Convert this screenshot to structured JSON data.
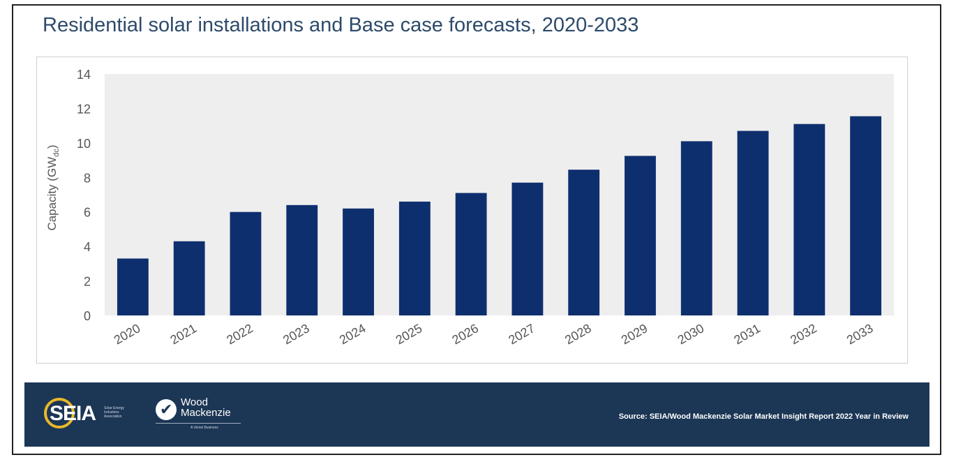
{
  "title": "Residential solar installations and Base case forecasts, 2020-2033",
  "colors": {
    "bar": "#0e2f6e",
    "plot_background": "#eeeeee",
    "title": "#2d4a6b",
    "footer_background": "#1c3655",
    "seia_ring": "#e8b82b",
    "axis_text": "#555555"
  },
  "chart_data": {
    "type": "bar",
    "title": "Residential solar installations and Base case forecasts, 2020-2033",
    "ylabel": "Capacity (GW",
    "ylabel_subscript": "dc",
    "ylabel_close": ")",
    "xlabel": "",
    "ylim": [
      0,
      14
    ],
    "yticks": [
      0,
      2,
      4,
      6,
      8,
      10,
      12,
      14
    ],
    "grid": false,
    "categories": [
      "2020",
      "2021",
      "2022",
      "2023",
      "2024",
      "2025",
      "2026",
      "2027",
      "2028",
      "2029",
      "2030",
      "2031",
      "2032",
      "2033"
    ],
    "values": [
      3.3,
      4.3,
      6.0,
      6.4,
      6.2,
      6.6,
      7.1,
      7.7,
      8.45,
      9.25,
      10.1,
      10.7,
      11.1,
      11.55
    ]
  },
  "footer": {
    "seia_logo_text": "SEIA",
    "seia_sub": "Solar Energy Industries Association",
    "wm_name_1": "Wood",
    "wm_name_2": "Mackenzie",
    "wm_sub": "A Verisk Business",
    "source": "Source: SEIA/Wood Mackenzie Solar Market Insight Report 2022 Year in Review"
  }
}
